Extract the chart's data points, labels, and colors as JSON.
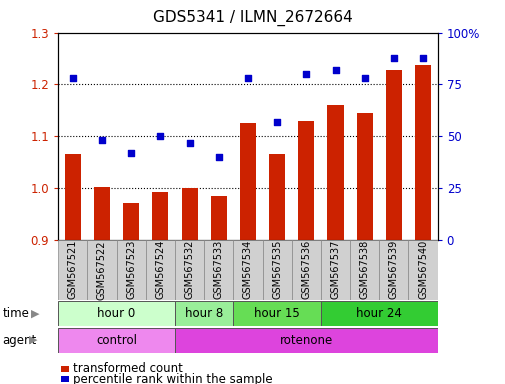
{
  "title": "GDS5341 / ILMN_2672664",
  "samples": [
    "GSM567521",
    "GSM567522",
    "GSM567523",
    "GSM567524",
    "GSM567532",
    "GSM567533",
    "GSM567534",
    "GSM567535",
    "GSM567536",
    "GSM567537",
    "GSM567538",
    "GSM567539",
    "GSM567540"
  ],
  "bar_values": [
    1.065,
    1.002,
    0.972,
    0.993,
    1.0,
    0.984,
    1.125,
    1.065,
    1.13,
    1.16,
    1.145,
    1.228,
    1.238
  ],
  "scatter_values": [
    78,
    48,
    42,
    50,
    47,
    40,
    78,
    57,
    80,
    82,
    78,
    88,
    88
  ],
  "bar_color": "#cc2200",
  "scatter_color": "#0000cc",
  "ylim_left": [
    0.9,
    1.3
  ],
  "ylim_right": [
    0,
    100
  ],
  "yticks_left": [
    0.9,
    1.0,
    1.1,
    1.2,
    1.3
  ],
  "yticks_right": [
    0,
    25,
    50,
    75,
    100
  ],
  "ytick_labels_right": [
    "0",
    "25",
    "50",
    "75",
    "100%"
  ],
  "hlines": [
    1.0,
    1.1,
    1.2
  ],
  "time_groups": [
    {
      "label": "hour 0",
      "start": 0,
      "end": 4,
      "color": "#ccffcc"
    },
    {
      "label": "hour 8",
      "start": 4,
      "end": 6,
      "color": "#99ee99"
    },
    {
      "label": "hour 15",
      "start": 6,
      "end": 9,
      "color": "#66dd55"
    },
    {
      "label": "hour 24",
      "start": 9,
      "end": 13,
      "color": "#33cc33"
    }
  ],
  "agent_groups": [
    {
      "label": "control",
      "start": 0,
      "end": 4,
      "color": "#ee88ee"
    },
    {
      "label": "rotenone",
      "start": 4,
      "end": 13,
      "color": "#dd44dd"
    }
  ],
  "time_label": "time",
  "agent_label": "agent",
  "legend_bar_label": "transformed count",
  "legend_scatter_label": "percentile rank within the sample",
  "tick_label_color_left": "#cc2200",
  "tick_label_color_right": "#0000cc",
  "sample_box_color": "#d0d0d0",
  "sample_box_edge": "#888888"
}
